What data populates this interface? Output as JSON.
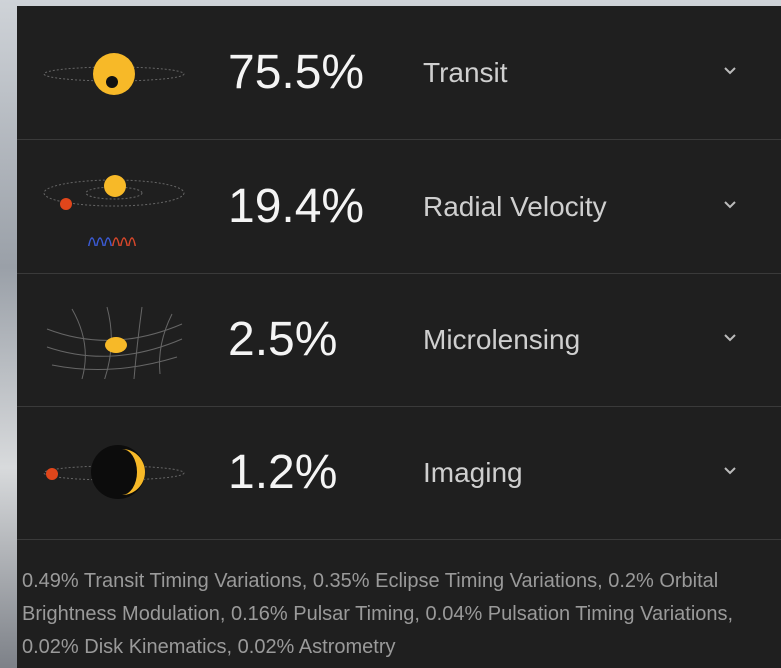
{
  "items": [
    {
      "percent": "75.5%",
      "method": "Transit"
    },
    {
      "percent": "19.4%",
      "method": "Radial Velocity"
    },
    {
      "percent": "2.5%",
      "method": "Microlensing"
    },
    {
      "percent": "1.2%",
      "method": "Imaging"
    }
  ],
  "footnote": "0.49% Transit Timing Variations, 0.35% Eclipse Timing Variations, 0.2% Orbital Brightness Modulation, 0.16% Pulsar Timing, 0.04% Pulsation Timing Variations, 0.02% Disk Kinematics, 0.02% Astrometry"
}
